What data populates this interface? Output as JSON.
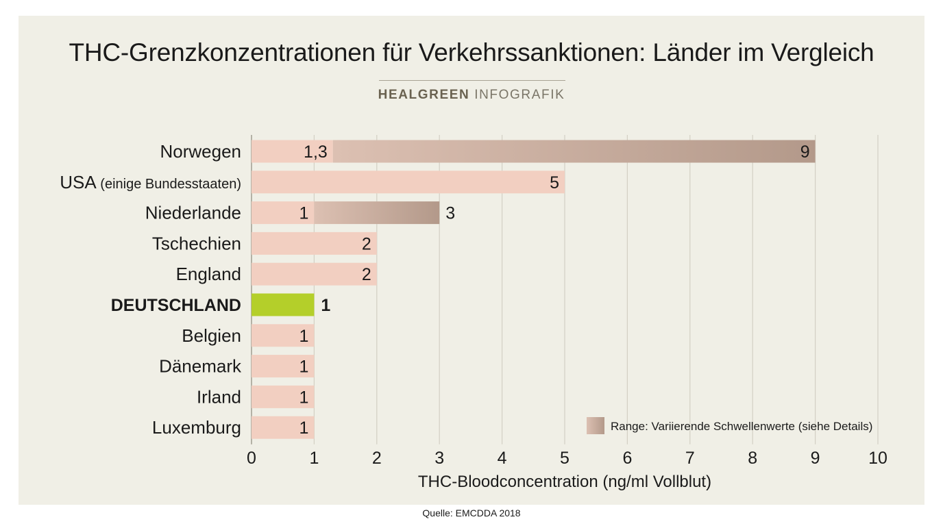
{
  "title": "THC-Grenzkonzentrationen für Verkehrssanktionen: Länder im Vergleich",
  "brand": {
    "bold": "HEALGREEN",
    "light": "INFOGRAFIK"
  },
  "source": "Quelle: EMCDDA 2018",
  "colors": {
    "background": "#f0efe6",
    "bar": "#f2cfc1",
    "range_start": "#dcc0b2",
    "range_end": "#b3998a",
    "highlight": "#b4cf2a",
    "grid": "#d3d0c4"
  },
  "chart_data": {
    "type": "bar",
    "orientation": "horizontal",
    "xlabel": "THC-Bloodconcentration (ng/ml Vollblut)",
    "xlim": [
      0,
      10
    ],
    "xticks": [
      "0",
      "1",
      "2",
      "3",
      "4",
      "5",
      "6",
      "7",
      "8",
      "9",
      "10"
    ],
    "grid": true,
    "legend": {
      "label": "Range: Variierende Schwellenwerte (siehe Details)",
      "placement": "bottom-right"
    },
    "rows": [
      {
        "country": "Norwegen",
        "suffix": "",
        "value": 1.3,
        "max": 9,
        "value_label": "1,3",
        "max_label": "9",
        "highlight": false
      },
      {
        "country": "USA",
        "suffix": "(einige Bundesstaaten)",
        "value": 5,
        "max": null,
        "value_label": "5",
        "max_label": "",
        "highlight": false
      },
      {
        "country": "Niederlande",
        "suffix": "",
        "value": 1,
        "max": 3,
        "value_label": "1",
        "max_label": "3",
        "highlight": false
      },
      {
        "country": "Tschechien",
        "suffix": "",
        "value": 2,
        "max": null,
        "value_label": "2",
        "max_label": "",
        "highlight": false
      },
      {
        "country": "England",
        "suffix": "",
        "value": 2,
        "max": null,
        "value_label": "2",
        "max_label": "",
        "highlight": false
      },
      {
        "country": "DEUTSCHLAND",
        "suffix": "",
        "value": 1,
        "max": null,
        "value_label": "1",
        "max_label": "",
        "highlight": true
      },
      {
        "country": "Belgien",
        "suffix": "",
        "value": 1,
        "max": null,
        "value_label": "1",
        "max_label": "",
        "highlight": false
      },
      {
        "country": "Dänemark",
        "suffix": "",
        "value": 1,
        "max": null,
        "value_label": "1",
        "max_label": "",
        "highlight": false
      },
      {
        "country": "Irland",
        "suffix": "",
        "value": 1,
        "max": null,
        "value_label": "1",
        "max_label": "",
        "highlight": false
      },
      {
        "country": "Luxemburg",
        "suffix": "",
        "value": 1,
        "max": null,
        "value_label": "1",
        "max_label": "",
        "highlight": false
      }
    ]
  }
}
